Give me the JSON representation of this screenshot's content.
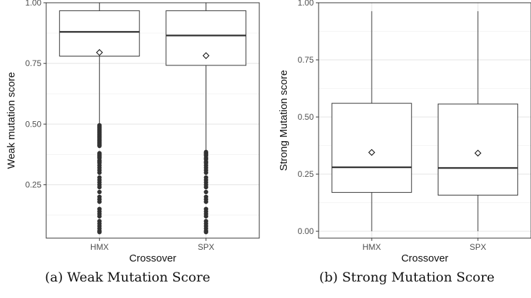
{
  "chart_data": [
    {
      "type": "boxplot",
      "panel": "a",
      "xlabel": "Crossover",
      "ylabel": "Weak mutation score",
      "categories": [
        "HMX",
        "SPX"
      ],
      "ylim": [
        0.03,
        1.0
      ],
      "yticks": [
        0.25,
        0.5,
        0.75,
        1.0
      ],
      "ytick_labels": [
        "0.25",
        "0.50",
        "0.75",
        "1.00"
      ],
      "grid": true,
      "boxes": [
        {
          "category": "HMX",
          "q1": 0.78,
          "median": 0.88,
          "q3": 0.967,
          "whisker_low": 0.5,
          "whisker_high": 1.0,
          "mean": 0.795,
          "outliers": [
            0.495,
            0.49,
            0.485,
            0.48,
            0.475,
            0.47,
            0.465,
            0.46,
            0.455,
            0.45,
            0.445,
            0.44,
            0.435,
            0.43,
            0.425,
            0.42,
            0.415,
            0.41,
            0.38,
            0.375,
            0.37,
            0.365,
            0.36,
            0.35,
            0.345,
            0.34,
            0.33,
            0.32,
            0.31,
            0.3,
            0.28,
            0.27,
            0.26,
            0.25,
            0.24,
            0.22,
            0.2,
            0.19,
            0.18,
            0.15,
            0.14,
            0.13,
            0.12,
            0.1,
            0.09,
            0.08,
            0.07,
            0.06,
            0.055
          ]
        },
        {
          "category": "SPX",
          "q1": 0.742,
          "median": 0.865,
          "q3": 0.967,
          "whisker_low": 0.39,
          "whisker_high": 1.0,
          "mean": 0.782,
          "outliers": [
            0.385,
            0.38,
            0.375,
            0.37,
            0.36,
            0.355,
            0.345,
            0.34,
            0.33,
            0.32,
            0.31,
            0.3,
            0.28,
            0.27,
            0.26,
            0.25,
            0.24,
            0.22,
            0.2,
            0.19,
            0.18,
            0.15,
            0.14,
            0.13,
            0.12,
            0.1,
            0.09,
            0.08,
            0.07,
            0.06,
            0.055
          ]
        }
      ]
    },
    {
      "type": "boxplot",
      "panel": "b",
      "xlabel": "Crossover",
      "ylabel": "Strong Mutation score",
      "categories": [
        "HMX",
        "SPX"
      ],
      "ylim": [
        -0.03,
        1.0
      ],
      "yticks": [
        0.0,
        0.25,
        0.5,
        0.75,
        1.0
      ],
      "ytick_labels": [
        "0.00",
        "0.25",
        "0.50",
        "0.75",
        "1.00"
      ],
      "grid": true,
      "boxes": [
        {
          "category": "HMX",
          "q1": 0.17,
          "median": 0.28,
          "q3": 0.56,
          "whisker_low": 0.0,
          "whisker_high": 0.963,
          "mean": 0.345,
          "outliers": []
        },
        {
          "category": "SPX",
          "q1": 0.158,
          "median": 0.277,
          "q3": 0.557,
          "whisker_low": 0.0,
          "whisker_high": 0.963,
          "mean": 0.342,
          "outliers": []
        }
      ]
    }
  ],
  "captions": {
    "a": "(a) Weak Mutation Score",
    "b": "(b) Strong Mutation Score"
  }
}
